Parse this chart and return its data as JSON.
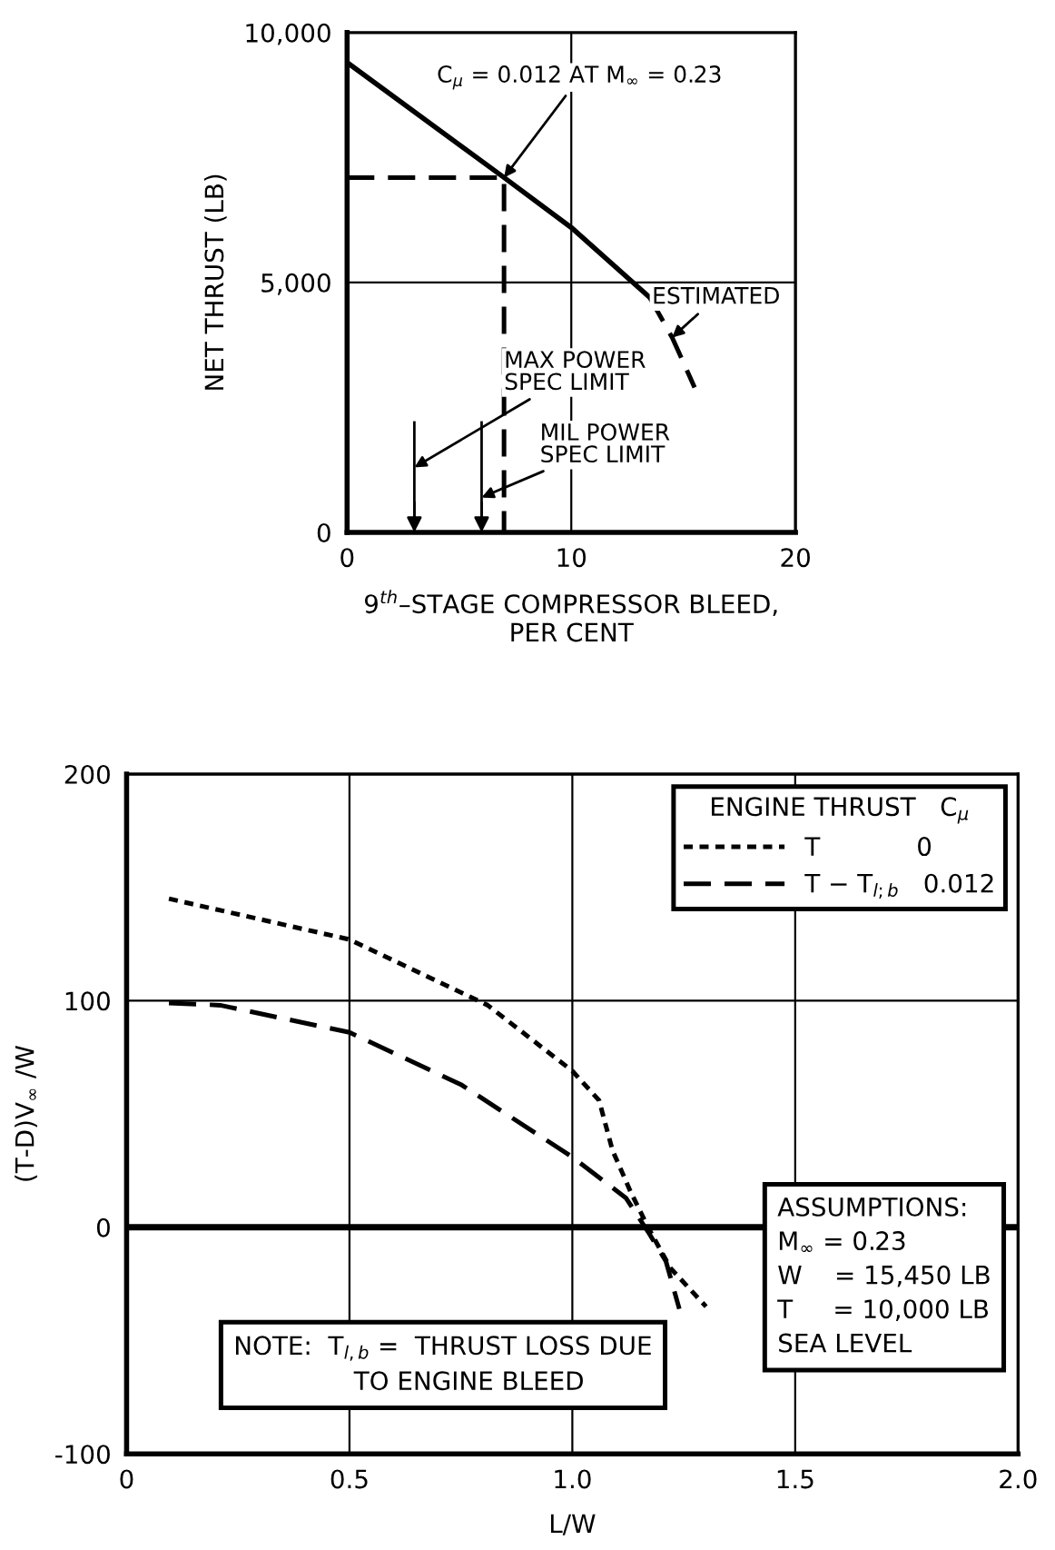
{
  "chart_data": [
    {
      "type": "line",
      "xlabel": "9$^{th}$–STAGE COMPRESSOR BLEED,\nPER CENT",
      "ylabel": "NET THRUST (LB)",
      "xlim": [
        0,
        20
      ],
      "ylim": [
        0,
        10000
      ],
      "xticks": [
        0,
        10,
        20
      ],
      "yticks": [
        0,
        {
          "value": 5000,
          "label": "5,000"
        },
        {
          "value": 10000,
          "label": "10,000"
        }
      ],
      "grid": true,
      "legend": false,
      "series": [
        {
          "color": "#000000",
          "line_style": "solid",
          "x": [
            0,
            7,
            10,
            13.5
          ],
          "values": [
            9400,
            7100,
            6100,
            4700
          ]
        },
        {
          "color": "#000000",
          "line_style": "dashed",
          "x": [
            13.5,
            14.5,
            15.5
          ],
          "values": [
            4700,
            3900,
            2900
          ]
        },
        {
          "color": "#000000",
          "line_style": "dashed",
          "x": [
            0,
            7,
            7
          ],
          "values": [
            7100,
            7100,
            0
          ]
        }
      ],
      "annotations": [
        {
          "text": "C$_{μ}$ = 0.012 AT M$_{∞}$ = 0.23",
          "x": 7,
          "y": 7100
        },
        {
          "text": "ESTIMATED",
          "x": 14.5,
          "y": 3900
        }
      ],
      "ref_lines": [
        {
          "axis": "x",
          "value": 3,
          "label": "MAX POWER\nSPEC LIMIT",
          "color": "#000000",
          "line_style": "solid"
        },
        {
          "axis": "x",
          "value": 6,
          "label": "MIL POWER\nSPEC LIMIT",
          "color": "#000000",
          "line_style": "solid"
        }
      ]
    },
    {
      "type": "line",
      "xlabel": "L/W",
      "ylabel": "(T-D)V$_{∞}$ /W",
      "xlim": [
        0,
        2
      ],
      "ylim": [
        -100,
        200
      ],
      "xticks": [
        0,
        0.5,
        {
          "value": 1,
          "label": "1.0"
        },
        1.5,
        {
          "value": 2,
          "label": "2.0"
        }
      ],
      "yticks": [
        -100,
        0,
        100,
        200
      ],
      "grid": true,
      "legend": "top right",
      "legend_title": "ENGINE THRUST   C$_{μ}$",
      "ref_lines": [
        {
          "axis": "y",
          "value": 0,
          "color": "#000000",
          "line_style": "solid"
        }
      ],
      "series": [
        {
          "name": "T            0",
          "color": "#000000",
          "line_style": "dotted",
          "x": [
            0.095,
            0.5,
            0.81,
            1.0,
            1.06,
            1.09,
            1.13,
            1.17,
            1.22,
            1.3
          ],
          "values": [
            145,
            127,
            98,
            69,
            56,
            34,
            16,
            0,
            -18,
            -35
          ]
        },
        {
          "name": "T − T$_{l;b}$   0.012",
          "color": "#000000",
          "line_style": "dashed",
          "x": [
            0.095,
            0.21,
            0.5,
            0.75,
            1.0,
            1.12,
            1.17,
            1.21,
            1.24
          ],
          "values": [
            99,
            98,
            86,
            63,
            31,
            13,
            -2,
            -15,
            -36
          ]
        }
      ],
      "annotations": [
        "NOTE:  T$_{l,b}$ =  THRUST LOSS DUE\n               TO ENGINE BLEED",
        "ASSUMPTIONS:\nM$_{∞}$ = 0.23\nW    = 15,450 LB\nT     = 10,000 LB\nSEA LEVEL"
      ]
    }
  ]
}
